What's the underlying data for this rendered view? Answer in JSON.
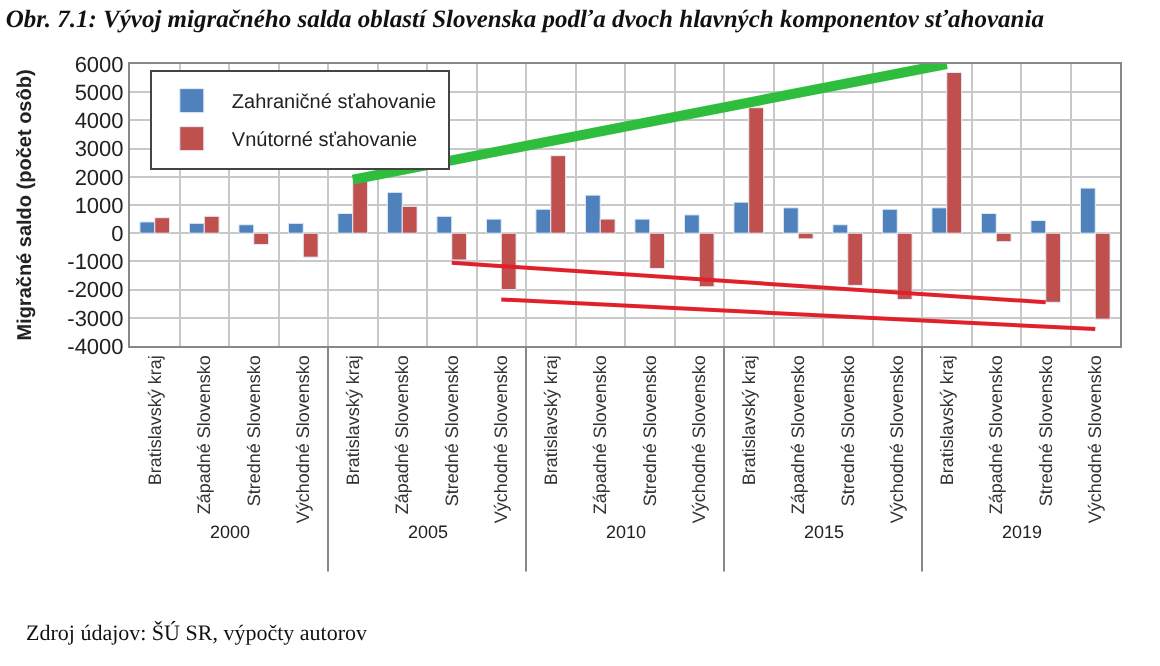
{
  "chart_data": {
    "type": "bar",
    "title": "Obr. 7.1: Vývoj migračného salda oblastí Slovenska podľa dvoch hlavných komponentov sťahovania",
    "ylabel": "Migračné saldo (počet osôb)",
    "categories": [
      "Bratislavský kraj",
      "Západné Slovensko",
      "Stredné Slovensko",
      "Východné Slovensko",
      "Bratislavský kraj",
      "Západné Slovensko",
      "Stredné Slovensko",
      "Východné Slovensko",
      "Bratislavský kraj",
      "Západné Slovensko",
      "Stredné Slovensko",
      "Východné Slovensko",
      "Bratislavský kraj",
      "Západné Slovensko",
      "Stredné Slovensko",
      "Východné Slovensko",
      "Bratislavský kraj",
      "Západné Slovensko",
      "Stredné Slovensko",
      "Východné Slovensko"
    ],
    "series": [
      {
        "name": "Zahraničné sťahovanie",
        "color": "#4f81bd",
        "values": [
          400,
          350,
          300,
          350,
          700,
          1450,
          600,
          500,
          850,
          1350,
          500,
          650,
          1100,
          900,
          300,
          850,
          900,
          700,
          450,
          1600
        ]
      },
      {
        "name": "Vnútorné sťahovanie",
        "color": "#c0504d",
        "values": [
          550,
          600,
          -400,
          -850,
          1850,
          950,
          -950,
          -2000,
          2750,
          500,
          -1250,
          -1900,
          4450,
          -200,
          -1850,
          -2350,
          5700,
          -300,
          -2450,
          -3050
        ]
      },
      {
        "type": "line",
        "color": "#2ebd3c",
        "values": [
          null,
          null,
          null,
          null,
          1900,
          null,
          null,
          null,
          null,
          null,
          null,
          null,
          null,
          null,
          null,
          null,
          6000,
          null,
          null,
          null
        ]
      },
      {
        "type": "line",
        "color": "#e0202a",
        "values": [
          null,
          null,
          null,
          null,
          null,
          null,
          -1050,
          null,
          null,
          null,
          null,
          null,
          null,
          null,
          null,
          null,
          null,
          null,
          -2450,
          null
        ]
      },
      {
        "type": "line",
        "color": "#e0202a",
        "values": [
          null,
          null,
          null,
          null,
          null,
          null,
          null,
          -2350,
          null,
          null,
          null,
          null,
          null,
          null,
          null,
          null,
          null,
          null,
          null,
          -3400
        ]
      }
    ],
    "annotations": [
      "2000",
      "2005",
      "2010",
      "2015",
      "2019",
      "Zdroj údajov: ŠÚ SR, výpočty autorov"
    ],
    "ylim": [
      -4000,
      6000
    ],
    "yticks": [
      -4000,
      -3000,
      -2000,
      -1000,
      0,
      1000,
      2000,
      3000,
      4000,
      5000,
      6000
    ],
    "grid": true,
    "legend": "top left"
  }
}
